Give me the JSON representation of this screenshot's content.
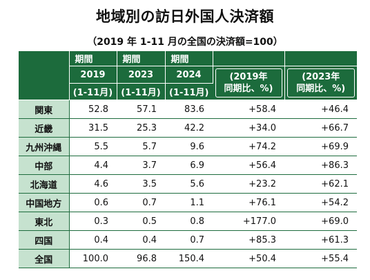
{
  "title": "地域別の訪日外国人決済額",
  "subtitle": "（2019 年 1-11 月の全国の決済額=100）",
  "header": {
    "period_label": "期間",
    "years": [
      "2019",
      "2023",
      "2024"
    ],
    "range": "(1-11月)",
    "ratio1_line1": "(2019年",
    "ratio1_line2": "同期比、%)",
    "ratio2_line1": "(2023年",
    "ratio2_line2": "同期比、%)"
  },
  "rows": [
    {
      "region": "関東",
      "v2019": "52.8",
      "v2023": "57.1",
      "v2024": "83.6",
      "r2019": "+58.4",
      "r2023": "+46.4"
    },
    {
      "region": "近畿",
      "v2019": "31.5",
      "v2023": "25.3",
      "v2024": "42.2",
      "r2019": "+34.0",
      "r2023": "+66.7"
    },
    {
      "region": "九州沖縄",
      "v2019": "5.5",
      "v2023": "5.7",
      "v2024": "9.6",
      "r2019": "+74.2",
      "r2023": "+69.9"
    },
    {
      "region": "中部",
      "v2019": "4.4",
      "v2023": "3.7",
      "v2024": "6.9",
      "r2019": "+56.4",
      "r2023": "+86.3"
    },
    {
      "region": "北海道",
      "v2019": "4.6",
      "v2023": "3.5",
      "v2024": "5.6",
      "r2019": "+23.2",
      "r2023": "+62.1"
    },
    {
      "region": "中国地方",
      "v2019": "0.6",
      "v2023": "0.7",
      "v2024": "1.1",
      "r2019": "+76.1",
      "r2023": "+54.2"
    },
    {
      "region": "東北",
      "v2019": "0.3",
      "v2023": "0.5",
      "v2024": "0.8",
      "r2019": "+177.0",
      "r2023": "+69.0"
    },
    {
      "region": "四国",
      "v2019": "0.4",
      "v2023": "0.4",
      "v2024": "0.7",
      "r2019": "+85.3",
      "r2023": "+61.3"
    },
    {
      "region": "全国",
      "v2019": "100.0",
      "v2023": "96.8",
      "v2024": "150.4",
      "r2019": "+50.4",
      "r2023": "+55.4"
    }
  ]
}
